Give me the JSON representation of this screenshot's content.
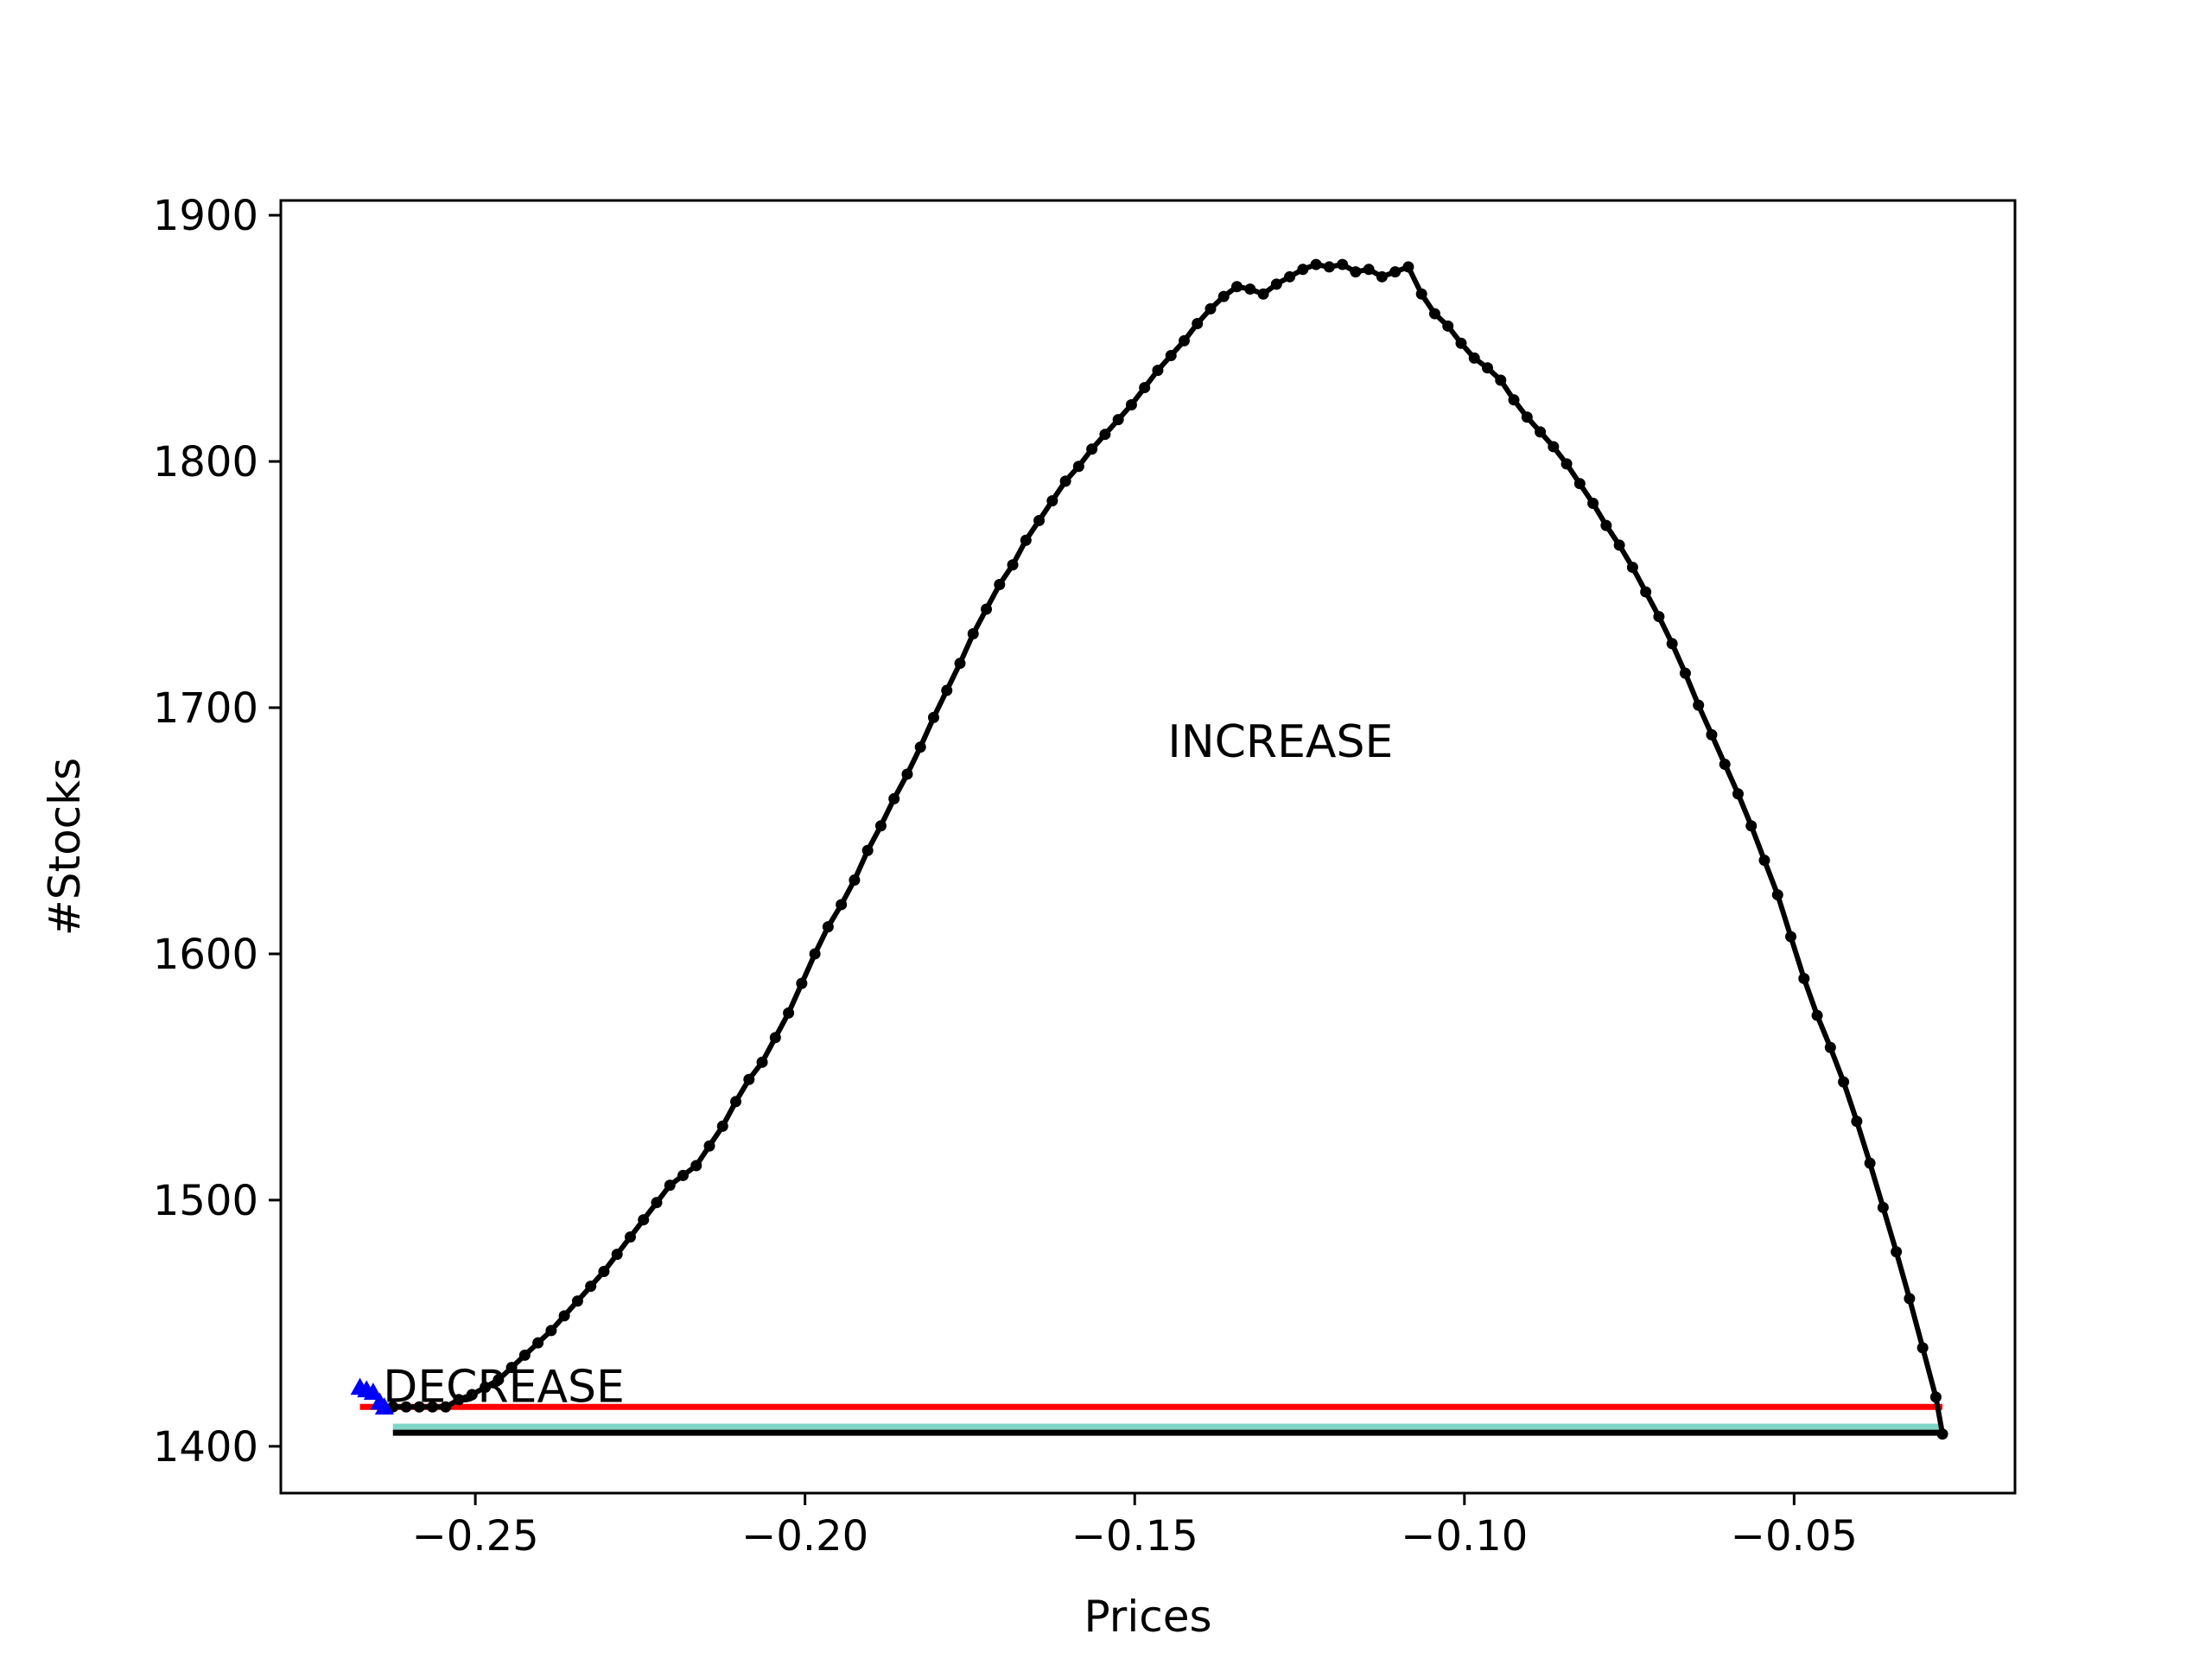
{
  "chart_data": {
    "type": "line",
    "title": "",
    "xlabel": "Prices",
    "ylabel": "#Stocks",
    "xlim": [
      -0.2795,
      -0.0165
    ],
    "ylim": [
      1381,
      1906
    ],
    "xticks": [
      -0.25,
      -0.2,
      -0.15,
      -0.1,
      -0.05
    ],
    "xtick_labels": [
      "−0.25",
      "−0.20",
      "−0.15",
      "−0.10",
      "−0.05"
    ],
    "yticks": [
      1400,
      1500,
      1600,
      1700,
      1800,
      1900
    ],
    "ytick_labels": [
      "1400",
      "1500",
      "1600",
      "1700",
      "1800",
      "1900"
    ],
    "grid": false,
    "annotations": [
      {
        "text": "INCREASE",
        "x": -0.145,
        "y": 1680
      },
      {
        "text": "DECREASE",
        "x": -0.264,
        "y": 1418
      }
    ],
    "colors": {
      "main": "#000000",
      "decrease": "#0000ff",
      "hline_red": "#ff0000",
      "hline_cyan": "#7fd6c8",
      "hline_black": "#000000"
    },
    "series": [
      {
        "color": "#000000",
        "marker": "circle",
        "points": [
          [
            -0.2625,
            1416
          ],
          [
            -0.2605,
            1416
          ],
          [
            -0.2585,
            1416
          ],
          [
            -0.2565,
            1416
          ],
          [
            -0.2545,
            1416
          ],
          [
            -0.2525,
            1419
          ],
          [
            -0.2505,
            1421
          ],
          [
            -0.2485,
            1424
          ],
          [
            -0.2465,
            1427
          ],
          [
            -0.2445,
            1432
          ],
          [
            -0.2425,
            1437
          ],
          [
            -0.2405,
            1442
          ],
          [
            -0.2385,
            1447
          ],
          [
            -0.2365,
            1453
          ],
          [
            -0.2345,
            1459
          ],
          [
            -0.2325,
            1465
          ],
          [
            -0.2305,
            1471
          ],
          [
            -0.2285,
            1478
          ],
          [
            -0.2265,
            1485
          ],
          [
            -0.2245,
            1492
          ],
          [
            -0.2225,
            1499
          ],
          [
            -0.2205,
            1506
          ],
          [
            -0.2185,
            1510
          ],
          [
            -0.2165,
            1514
          ],
          [
            -0.2145,
            1522
          ],
          [
            -0.2125,
            1530
          ],
          [
            -0.2105,
            1540
          ],
          [
            -0.2085,
            1549
          ],
          [
            -0.2065,
            1556
          ],
          [
            -0.2045,
            1566
          ],
          [
            -0.2025,
            1576
          ],
          [
            -0.2005,
            1588
          ],
          [
            -0.1985,
            1600
          ],
          [
            -0.1965,
            1611
          ],
          [
            -0.1945,
            1620
          ],
          [
            -0.1925,
            1630
          ],
          [
            -0.1905,
            1642
          ],
          [
            -0.1885,
            1652
          ],
          [
            -0.1865,
            1663
          ],
          [
            -0.1845,
            1673
          ],
          [
            -0.1825,
            1684
          ],
          [
            -0.1805,
            1696
          ],
          [
            -0.1785,
            1707
          ],
          [
            -0.1765,
            1718
          ],
          [
            -0.1745,
            1730
          ],
          [
            -0.1725,
            1740
          ],
          [
            -0.1705,
            1750
          ],
          [
            -0.1685,
            1758
          ],
          [
            -0.1665,
            1768
          ],
          [
            -0.1645,
            1776
          ],
          [
            -0.1625,
            1784
          ],
          [
            -0.1605,
            1792
          ],
          [
            -0.1585,
            1798
          ],
          [
            -0.1565,
            1805
          ],
          [
            -0.1545,
            1811
          ],
          [
            -0.1525,
            1817
          ],
          [
            -0.1505,
            1823
          ],
          [
            -0.1485,
            1830
          ],
          [
            -0.1465,
            1837
          ],
          [
            -0.1445,
            1843
          ],
          [
            -0.1425,
            1849
          ],
          [
            -0.1405,
            1856
          ],
          [
            -0.1385,
            1862
          ],
          [
            -0.1365,
            1867
          ],
          [
            -0.1345,
            1871
          ],
          [
            -0.1325,
            1870
          ],
          [
            -0.1305,
            1868
          ],
          [
            -0.1285,
            1872
          ],
          [
            -0.1265,
            1875
          ],
          [
            -0.1245,
            1878
          ],
          [
            -0.1225,
            1880
          ],
          [
            -0.1205,
            1879
          ],
          [
            -0.1185,
            1880
          ],
          [
            -0.1165,
            1877
          ],
          [
            -0.1145,
            1878
          ],
          [
            -0.1125,
            1875
          ],
          [
            -0.1105,
            1877
          ],
          [
            -0.1085,
            1879
          ],
          [
            -0.1065,
            1868
          ],
          [
            -0.1045,
            1860
          ],
          [
            -0.1025,
            1855
          ],
          [
            -0.1005,
            1848
          ],
          [
            -0.0985,
            1842
          ],
          [
            -0.0965,
            1838
          ],
          [
            -0.0945,
            1833
          ],
          [
            -0.0925,
            1825
          ],
          [
            -0.0905,
            1818
          ],
          [
            -0.0885,
            1812
          ],
          [
            -0.0865,
            1806
          ],
          [
            -0.0845,
            1799
          ],
          [
            -0.0825,
            1791
          ],
          [
            -0.0805,
            1783
          ],
          [
            -0.0785,
            1774
          ],
          [
            -0.0765,
            1766
          ],
          [
            -0.0745,
            1757
          ],
          [
            -0.0725,
            1747
          ],
          [
            -0.0705,
            1737
          ],
          [
            -0.0685,
            1726
          ],
          [
            -0.0665,
            1714
          ],
          [
            -0.0645,
            1701
          ],
          [
            -0.0625,
            1689
          ],
          [
            -0.0605,
            1677
          ],
          [
            -0.0585,
            1665
          ],
          [
            -0.0565,
            1652
          ],
          [
            -0.0545,
            1638
          ],
          [
            -0.0525,
            1624
          ],
          [
            -0.0505,
            1607
          ],
          [
            -0.0485,
            1590
          ],
          [
            -0.0465,
            1575
          ],
          [
            -0.0445,
            1562
          ],
          [
            -0.0425,
            1548
          ],
          [
            -0.0405,
            1532
          ],
          [
            -0.0385,
            1515
          ],
          [
            -0.0365,
            1497
          ],
          [
            -0.0345,
            1479
          ],
          [
            -0.0325,
            1460
          ],
          [
            -0.0305,
            1440
          ],
          [
            -0.0285,
            1420
          ],
          [
            -0.0275,
            1405
          ]
        ]
      },
      {
        "color": "#0000ff",
        "marker": "triangle",
        "points": [
          [
            -0.2675,
            1424
          ],
          [
            -0.2665,
            1423
          ],
          [
            -0.2655,
            1422
          ],
          [
            -0.2645,
            1418
          ],
          [
            -0.2638,
            1416
          ]
        ]
      }
    ],
    "hlines": [
      {
        "y": 1416,
        "xmin": -0.2675,
        "xmax": -0.0275,
        "color": "#ff0000"
      },
      {
        "y": 1408,
        "xmin": -0.2625,
        "xmax": -0.0275,
        "color": "#7fd6c8"
      },
      {
        "y": 1405.5,
        "xmin": -0.2625,
        "xmax": -0.0275,
        "color": "#000000"
      }
    ]
  }
}
